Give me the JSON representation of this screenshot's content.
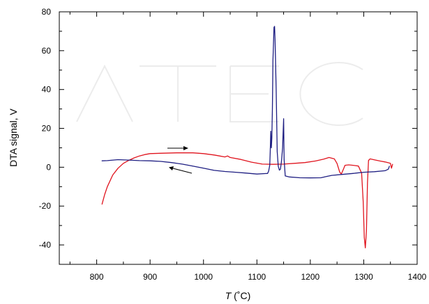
{
  "chart_data": {
    "type": "line",
    "title": "",
    "xlabel": "T",
    "xlabel_unit": "(˚C)",
    "ylabel": "DTA signal,   V",
    "xlim": [
      730,
      1400
    ],
    "ylim": [
      -50,
      80
    ],
    "x_ticks": [
      800,
      900,
      1000,
      1100,
      1200,
      1300,
      1400
    ],
    "y_ticks": [
      -40,
      -20,
      0,
      20,
      40,
      60,
      80
    ],
    "grid": false,
    "legend": "none",
    "series": [
      {
        "color": "#e0141e",
        "direction": "heating",
        "points": [
          [
            810,
            -19
          ],
          [
            815,
            -14
          ],
          [
            820,
            -10
          ],
          [
            830,
            -4
          ],
          [
            840,
            -0.5
          ],
          [
            850,
            2
          ],
          [
            860,
            3.5
          ],
          [
            870,
            4.8
          ],
          [
            880,
            5.8
          ],
          [
            890,
            6.5
          ],
          [
            900,
            7
          ],
          [
            920,
            7.2
          ],
          [
            950,
            7.4
          ],
          [
            980,
            7.4
          ],
          [
            1000,
            7
          ],
          [
            1020,
            6.3
          ],
          [
            1030,
            5.8
          ],
          [
            1040,
            5.3
          ],
          [
            1045,
            5.8
          ],
          [
            1050,
            5
          ],
          [
            1070,
            4
          ],
          [
            1090,
            2.6
          ],
          [
            1110,
            1.6
          ],
          [
            1130,
            1.5
          ],
          [
            1150,
            1.6
          ],
          [
            1170,
            2
          ],
          [
            1190,
            2.4
          ],
          [
            1210,
            3.2
          ],
          [
            1225,
            4.2
          ],
          [
            1235,
            5
          ],
          [
            1245,
            4.3
          ],
          [
            1250,
            2
          ],
          [
            1255,
            -2.5
          ],
          [
            1258,
            -3.5
          ],
          [
            1262,
            -1
          ],
          [
            1265,
            1
          ],
          [
            1272,
            1.2
          ],
          [
            1280,
            1
          ],
          [
            1290,
            0.6
          ],
          [
            1296,
            -3
          ],
          [
            1299,
            -18
          ],
          [
            1301,
            -36
          ],
          [
            1303,
            -41.5
          ],
          [
            1305,
            -33
          ],
          [
            1307,
            -8
          ],
          [
            1309,
            3.5
          ],
          [
            1312,
            4.3
          ],
          [
            1320,
            3.8
          ],
          [
            1330,
            3.2
          ],
          [
            1340,
            2.7
          ],
          [
            1350,
            2
          ],
          [
            1352,
            -0.5
          ],
          [
            1354,
            1.5
          ]
        ]
      },
      {
        "color": "#1e1e82",
        "direction": "cooling",
        "points": [
          [
            1348,
            0.5
          ],
          [
            1346,
            -1
          ],
          [
            1340,
            -1.8
          ],
          [
            1320,
            -2.3
          ],
          [
            1300,
            -2.6
          ],
          [
            1280,
            -3.2
          ],
          [
            1260,
            -3.7
          ],
          [
            1240,
            -4.2
          ],
          [
            1230,
            -4.8
          ],
          [
            1220,
            -5.4
          ],
          [
            1200,
            -5.5
          ],
          [
            1180,
            -5.4
          ],
          [
            1160,
            -5
          ],
          [
            1153,
            -4.5
          ],
          [
            1151,
            4
          ],
          [
            1150,
            25
          ],
          [
            1148,
            10
          ],
          [
            1146,
            3
          ],
          [
            1144,
            -1
          ],
          [
            1142,
            -1.5
          ],
          [
            1140,
            0.5
          ],
          [
            1138,
            8
          ],
          [
            1136,
            40
          ],
          [
            1134,
            66
          ],
          [
            1133,
            72.5
          ],
          [
            1132,
            72
          ],
          [
            1130,
            55
          ],
          [
            1129,
            30
          ],
          [
            1128,
            15
          ],
          [
            1127,
            10
          ],
          [
            1126,
            18.5
          ],
          [
            1125,
            8
          ],
          [
            1124,
            1
          ],
          [
            1122,
            -2
          ],
          [
            1120,
            -3.2
          ],
          [
            1100,
            -3.5
          ],
          [
            1080,
            -3
          ],
          [
            1060,
            -2.6
          ],
          [
            1040,
            -2.2
          ],
          [
            1020,
            -1.6
          ],
          [
            1000,
            -0.5
          ],
          [
            980,
            0.6
          ],
          [
            960,
            1.6
          ],
          [
            940,
            2.4
          ],
          [
            920,
            3
          ],
          [
            900,
            3.3
          ],
          [
            880,
            3.4
          ],
          [
            860,
            3.7
          ],
          [
            840,
            3.9
          ],
          [
            820,
            3.4
          ],
          [
            810,
            3.3
          ]
        ]
      }
    ]
  }
}
